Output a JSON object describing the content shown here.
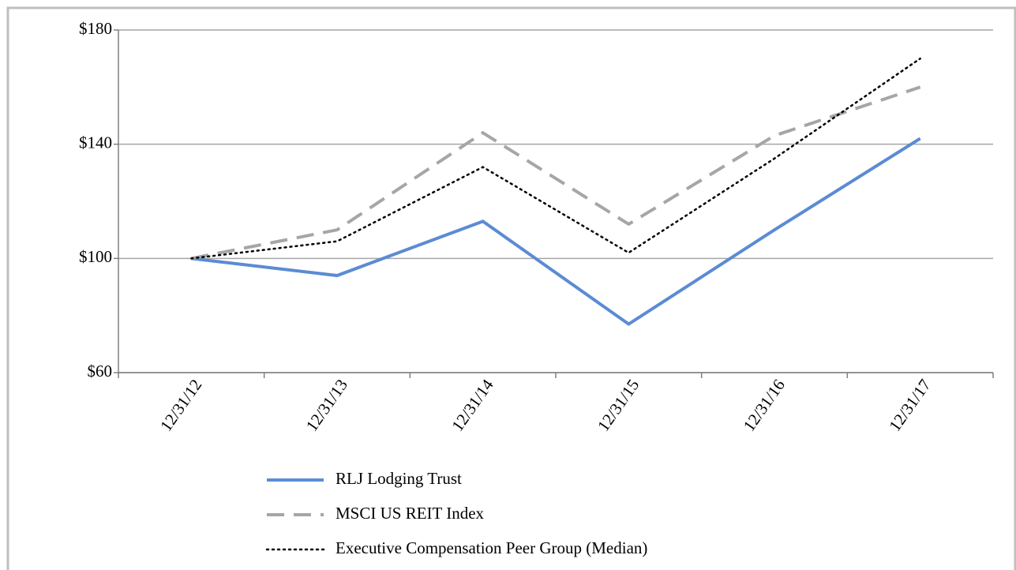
{
  "chart_data": {
    "type": "line",
    "categories": [
      "12/31/12",
      "12/31/13",
      "12/31/14",
      "12/31/15",
      "12/31/16",
      "12/31/17"
    ],
    "series": [
      {
        "name": "RLJ Lodging Trust",
        "color": "#5b8bd4",
        "style": "solid",
        "values": [
          100,
          94,
          113,
          77,
          110,
          142
        ]
      },
      {
        "name": "MSCI US REIT Index",
        "color": "#a6a6a6",
        "style": "dashed",
        "values": [
          100,
          110,
          144,
          112,
          143,
          160
        ]
      },
      {
        "name": "Executive Compensation Peer Group (Median)",
        "color": "#000000",
        "style": "dotted",
        "values": [
          100,
          106,
          132,
          102,
          135,
          170
        ]
      }
    ],
    "ylim": [
      60,
      180
    ],
    "yticks": [
      {
        "value": 60,
        "label": "$60"
      },
      {
        "value": 100,
        "label": "$100"
      },
      {
        "value": 140,
        "label": "$140"
      },
      {
        "value": 180,
        "label": "$180"
      }
    ],
    "grid": true,
    "legend": "bottom"
  }
}
